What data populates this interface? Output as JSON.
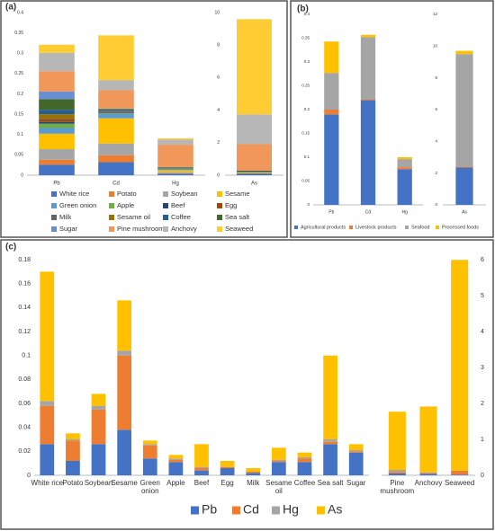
{
  "chart_data": [
    {
      "type": "bar",
      "stacked": true,
      "label": "(a)",
      "grid": false,
      "legend": "bottom",
      "categories": [
        "Pb",
        "Cd",
        "Hg",
        "As"
      ],
      "category_axes": [
        "y",
        "y",
        "y",
        "y2"
      ],
      "ylim": [
        0,
        0.4
      ],
      "yticks": [
        0,
        0.05,
        0.1,
        0.15,
        0.2,
        0.25,
        0.3,
        0.35,
        0.4
      ],
      "y2lim": [
        0,
        10
      ],
      "y2ticks": [
        0,
        2,
        4,
        6,
        8,
        10
      ],
      "series": [
        {
          "name": "White rice",
          "color": "#4472c4",
          "values": [
            0.026,
            0.032,
            0.004,
            0.108
          ]
        },
        {
          "name": "Potato",
          "color": "#ed7d31",
          "values": [
            0.012,
            0.017,
            0.001,
            0.005
          ]
        },
        {
          "name": "Soybean",
          "color": "#a5a5a5",
          "values": [
            0.026,
            0.029,
            0.003,
            0.01
          ]
        },
        {
          "name": "Sesame",
          "color": "#ffc000",
          "values": [
            0.038,
            0.062,
            0.004,
            0.042
          ]
        },
        {
          "name": "Green onion",
          "color": "#5b9bd5",
          "values": [
            0.014,
            0.011,
            0.001,
            0.003
          ]
        },
        {
          "name": "Apple",
          "color": "#70ad47",
          "values": [
            0.011,
            0.002,
            0.001,
            0.003
          ]
        },
        {
          "name": "Beef",
          "color": "#264478",
          "values": [
            0.004,
            0.002,
            0.001,
            0.019
          ]
        },
        {
          "name": "Egg",
          "color": "#9e480e",
          "values": [
            0.006,
            0.001,
            0,
            0.005
          ]
        },
        {
          "name": "Milk",
          "color": "#636363",
          "values": [
            0.002,
            0.001,
            0,
            0.003
          ]
        },
        {
          "name": "Sesame oil",
          "color": "#997300",
          "values": [
            0.011,
            0.001,
            0.001,
            0.01
          ]
        },
        {
          "name": "Coffee",
          "color": "#255e91",
          "values": [
            0.011,
            0.003,
            0.001,
            0.004
          ]
        },
        {
          "name": "Sea salt",
          "color": "#43682b",
          "values": [
            0.026,
            0.002,
            0.002,
            0.07
          ]
        },
        {
          "name": "Sugar",
          "color": "#698ed0",
          "values": [
            0.019,
            0.001,
            0.001,
            0.005
          ]
        },
        {
          "name": "Pine mushroom",
          "color": "#f1975a",
          "values": [
            0.05,
            0.045,
            0.055,
            1.62
          ]
        },
        {
          "name": "Anchovy",
          "color": "#b7b7b7",
          "values": [
            0.045,
            0.025,
            0.013,
            1.83
          ]
        },
        {
          "name": "Seaweed",
          "color": "#ffcd33",
          "values": [
            0.02,
            0.11,
            0.003,
            5.86
          ]
        }
      ]
    },
    {
      "type": "bar",
      "stacked": true,
      "label": "(b)",
      "grid": false,
      "legend": "bottom",
      "categories": [
        "Pb",
        "Cd",
        "Hg",
        "As"
      ],
      "category_axes": [
        "y",
        "y",
        "y",
        "y2"
      ],
      "ylim": [
        0,
        0.4
      ],
      "yticks": [
        0,
        0.05,
        0.1,
        0.15,
        0.2,
        0.25,
        0.3,
        0.35,
        0.4
      ],
      "y2lim": [
        0,
        12
      ],
      "y2ticks": [
        0,
        2,
        4,
        6,
        8,
        10,
        12
      ],
      "series": [
        {
          "name": "Agricultural products",
          "color": "#4472c4",
          "values": [
            0.19,
            0.22,
            0.075,
            2.35
          ]
        },
        {
          "name": "Livestock products",
          "color": "#ed7d31",
          "values": [
            0.01,
            0.002,
            0.004,
            0.05
          ]
        },
        {
          "name": "Seafood",
          "color": "#a5a5a5",
          "values": [
            0.077,
            0.13,
            0.017,
            7.1
          ]
        },
        {
          "name": "Processed foods",
          "color": "#ffc000",
          "values": [
            0.066,
            0.005,
            0.004,
            0.2
          ]
        }
      ]
    },
    {
      "type": "bar",
      "stacked": true,
      "label": "(c)",
      "grid": false,
      "legend": "bottom",
      "categories": [
        "White rice",
        "Potato",
        "Soybean",
        "Sesame",
        "Green onion",
        "Apple",
        "Beef",
        "Egg",
        "Milk",
        "Sesame oil",
        "Coffee",
        "Sea salt",
        "Sugar",
        "Pine mushroom",
        "Anchovy",
        "Seaweed"
      ],
      "category_axes": [
        "y",
        "y",
        "y",
        "y",
        "y",
        "y",
        "y",
        "y",
        "y",
        "y",
        "y",
        "y",
        "y",
        "y2",
        "y2",
        "y2"
      ],
      "ylim": [
        0,
        0.18
      ],
      "yticks": [
        0,
        0.02,
        0.04,
        0.06,
        0.08,
        0.1,
        0.12,
        0.14,
        0.16,
        0.18
      ],
      "y2lim": [
        0,
        6
      ],
      "y2ticks": [
        0,
        1,
        2,
        3,
        4,
        5,
        6
      ],
      "series": [
        {
          "name": "Pb",
          "color": "#4472c4",
          "values": [
            0.026,
            0.012,
            0.026,
            0.038,
            0.014,
            0.011,
            0.004,
            0.006,
            0.002,
            0.011,
            0.011,
            0.026,
            0.019,
            0.05,
            0.045,
            0.02
          ]
        },
        {
          "name": "Cd",
          "color": "#ed7d31",
          "values": [
            0.032,
            0.017,
            0.029,
            0.062,
            0.011,
            0.002,
            0.002,
            0.001,
            0.001,
            0.001,
            0.003,
            0.002,
            0.001,
            0.045,
            0.025,
            0.11
          ]
        },
        {
          "name": "Hg",
          "color": "#a5a5a5",
          "values": [
            0.004,
            0.001,
            0.003,
            0.004,
            0.001,
            0.001,
            0.001,
            0,
            0,
            0.001,
            0.001,
            0.002,
            0.001,
            0.055,
            0.013,
            0.003
          ]
        },
        {
          "name": "As",
          "color": "#ffc000",
          "values": [
            0.108,
            0.005,
            0.01,
            0.042,
            0.003,
            0.003,
            0.019,
            0.005,
            0.003,
            0.01,
            0.004,
            0.07,
            0.005,
            1.62,
            1.83,
            5.86
          ]
        }
      ]
    }
  ]
}
